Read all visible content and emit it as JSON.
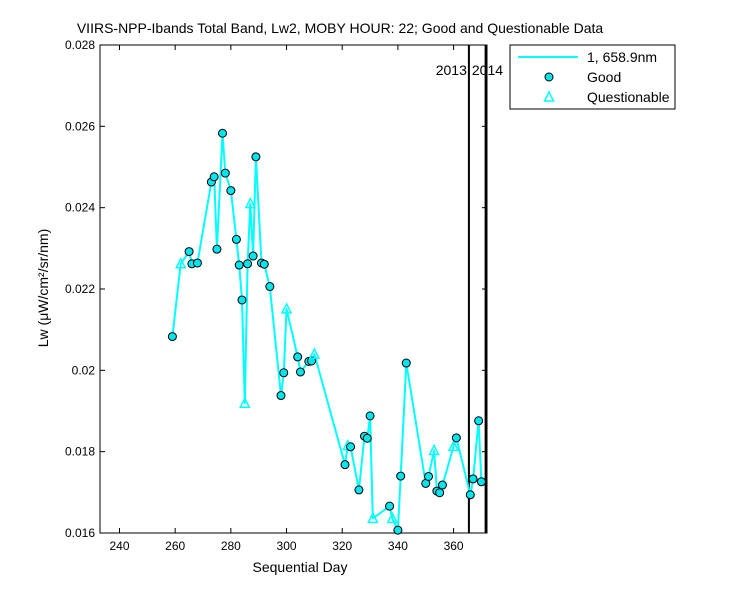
{
  "chart_data": {
    "type": "scatter",
    "title": "VIIRS-NPP-Ibands Total Band,  Lw2, MOBY HOUR: 22;  Good and Questionable Data",
    "xlabel": "Sequential Day",
    "ylabel": "Lw (μW/cm²/sr/nm)",
    "xlim": [
      233,
      372
    ],
    "ylim": [
      0.016,
      0.028
    ],
    "xticks": [
      240,
      260,
      280,
      300,
      320,
      340,
      360
    ],
    "yticks": [
      0.016,
      0.018,
      0.02,
      0.022,
      0.024,
      0.026,
      0.028
    ],
    "xtick_labels": [
      "240",
      "260",
      "280",
      "300",
      "320",
      "340",
      "360"
    ],
    "ytick_labels": [
      "0.016",
      "0.018",
      "0.02",
      "0.022",
      "0.024",
      "0.026",
      "0.028"
    ],
    "grid": false,
    "legend_position": "top-right, outside plot",
    "colors": {
      "series": "#00ffff",
      "marker_good": "#00e5ee",
      "marker_edge": "#000000",
      "axes": "#000000"
    },
    "year_dividers": [
      {
        "x": 365.5,
        "label_left": "2013",
        "label_right": "2014"
      },
      {
        "x": 371.5
      }
    ],
    "legend": [
      {
        "label": "1, 658.9nm",
        "symbol": "line"
      },
      {
        "label": "Good",
        "symbol": "circle"
      },
      {
        "label": "Questionable",
        "symbol": "triangle"
      }
    ],
    "series": [
      {
        "points": [
          {
            "x": 259,
            "y": 0.02083,
            "q": "good"
          },
          {
            "x": 262,
            "y": 0.02262,
            "q": "questionable"
          },
          {
            "x": 265,
            "y": 0.02292,
            "q": "good"
          },
          {
            "x": 266,
            "y": 0.02262,
            "q": "good"
          },
          {
            "x": 268,
            "y": 0.02264,
            "q": "good"
          },
          {
            "x": 273,
            "y": 0.02463,
            "q": "good"
          },
          {
            "x": 274,
            "y": 0.02476,
            "q": "good"
          },
          {
            "x": 275,
            "y": 0.02298,
            "q": "good"
          },
          {
            "x": 277,
            "y": 0.02583,
            "q": "good"
          },
          {
            "x": 278,
            "y": 0.02485,
            "q": "good"
          },
          {
            "x": 280,
            "y": 0.02442,
            "q": "good"
          },
          {
            "x": 282,
            "y": 0.02322,
            "q": "good"
          },
          {
            "x": 283,
            "y": 0.02259,
            "q": "good"
          },
          {
            "x": 284,
            "y": 0.02173,
            "q": "good"
          },
          {
            "x": 285,
            "y": 0.01919,
            "q": "questionable"
          },
          {
            "x": 286,
            "y": 0.02262,
            "q": "good"
          },
          {
            "x": 287,
            "y": 0.0241,
            "q": "questionable"
          },
          {
            "x": 288,
            "y": 0.02281,
            "q": "good"
          },
          {
            "x": 289,
            "y": 0.02525,
            "q": "good"
          },
          {
            "x": 291,
            "y": 0.02264,
            "q": "good"
          },
          {
            "x": 292,
            "y": 0.02261,
            "q": "good"
          },
          {
            "x": 294,
            "y": 0.02206,
            "q": "good"
          },
          {
            "x": 298,
            "y": 0.01938,
            "q": "good"
          },
          {
            "x": 299,
            "y": 0.01994,
            "q": "good"
          },
          {
            "x": 300,
            "y": 0.02151,
            "q": "questionable"
          },
          {
            "x": 304,
            "y": 0.02033,
            "q": "good"
          },
          {
            "x": 305,
            "y": 0.01996,
            "q": "good"
          },
          {
            "x": 308,
            "y": 0.02022,
            "q": "good"
          },
          {
            "x": 309,
            "y": 0.02023,
            "q": "good"
          },
          {
            "x": 310,
            "y": 0.0204,
            "q": "questionable"
          },
          {
            "x": 321,
            "y": 0.01768,
            "q": "good"
          },
          {
            "x": 322,
            "y": 0.01815,
            "q": "questionable"
          },
          {
            "x": 323,
            "y": 0.01812,
            "q": "good"
          },
          {
            "x": 326,
            "y": 0.01706,
            "q": "good"
          },
          {
            "x": 328,
            "y": 0.01838,
            "q": "good"
          },
          {
            "x": 329,
            "y": 0.01833,
            "q": "good"
          },
          {
            "x": 330,
            "y": 0.01888,
            "q": "good"
          },
          {
            "x": 331,
            "y": 0.01636,
            "q": "questionable"
          },
          {
            "x": 337,
            "y": 0.01666,
            "q": "good"
          },
          {
            "x": 338,
            "y": 0.01636,
            "q": "questionable"
          },
          {
            "x": 340,
            "y": 0.01607,
            "q": "good"
          },
          {
            "x": 341,
            "y": 0.0174,
            "q": "good"
          },
          {
            "x": 343,
            "y": 0.02018,
            "q": "good"
          },
          {
            "x": 350,
            "y": 0.01722,
            "q": "good"
          },
          {
            "x": 351,
            "y": 0.01739,
            "q": "good"
          },
          {
            "x": 353,
            "y": 0.01803,
            "q": "questionable"
          },
          {
            "x": 354,
            "y": 0.01703,
            "q": "good"
          },
          {
            "x": 355,
            "y": 0.01699,
            "q": "good"
          },
          {
            "x": 356,
            "y": 0.01718,
            "q": "good"
          },
          {
            "x": 360,
            "y": 0.01813,
            "q": "questionable"
          },
          {
            "x": 361,
            "y": 0.01834,
            "q": "good"
          },
          {
            "x": 366,
            "y": 0.01694,
            "q": "good"
          },
          {
            "x": 367,
            "y": 0.01733,
            "q": "good"
          },
          {
            "x": 369,
            "y": 0.01876,
            "q": "good"
          },
          {
            "x": 370,
            "y": 0.01726,
            "q": "good"
          }
        ]
      }
    ]
  }
}
